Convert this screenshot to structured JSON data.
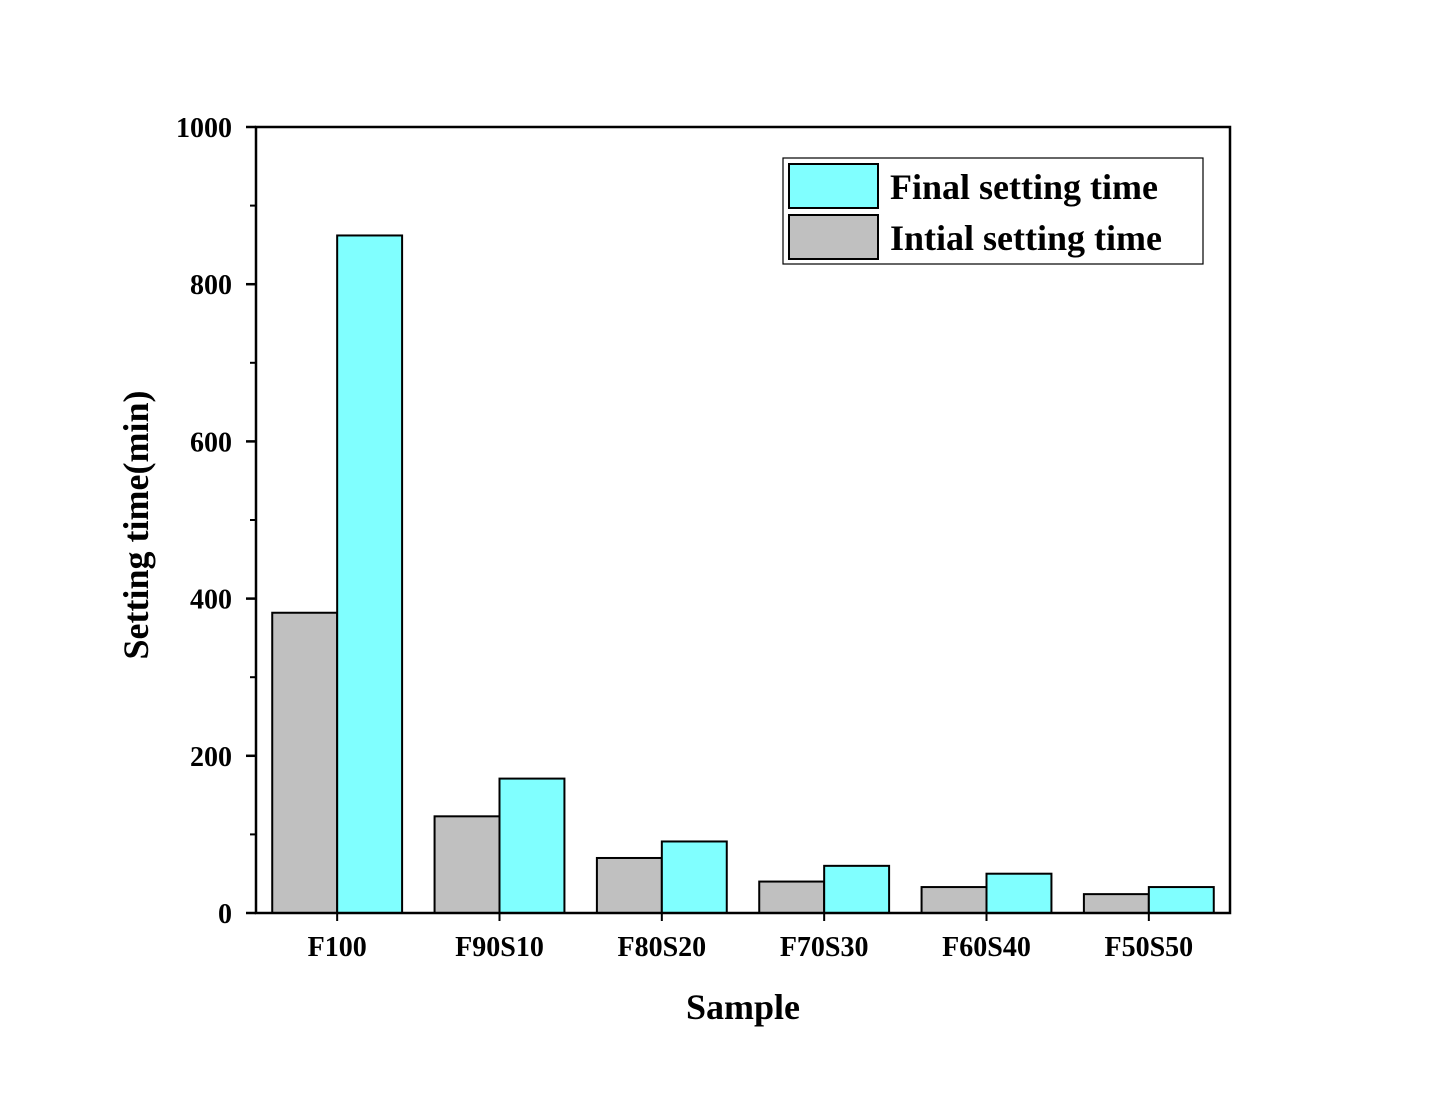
{
  "chart_data": {
    "type": "bar",
    "title": "",
    "xlabel": "Sample",
    "ylabel": "Setting time(min)",
    "ylim": [
      0,
      1000
    ],
    "yticks": [
      0,
      200,
      400,
      600,
      800,
      1000
    ],
    "grid": false,
    "legend_position": "top-right",
    "categories": [
      "F100",
      "F90S10",
      "F80S20",
      "F70S30",
      "F60S40",
      "F50S50"
    ],
    "series": [
      {
        "name": "Intial setting time",
        "color": "#c0c0c0",
        "values": [
          382,
          123,
          70,
          40,
          33,
          24
        ]
      },
      {
        "name": "Final setting time",
        "color": "#80ffff",
        "values": [
          862,
          171,
          91,
          60,
          50,
          33
        ]
      }
    ],
    "legend_order": [
      1,
      0
    ]
  }
}
